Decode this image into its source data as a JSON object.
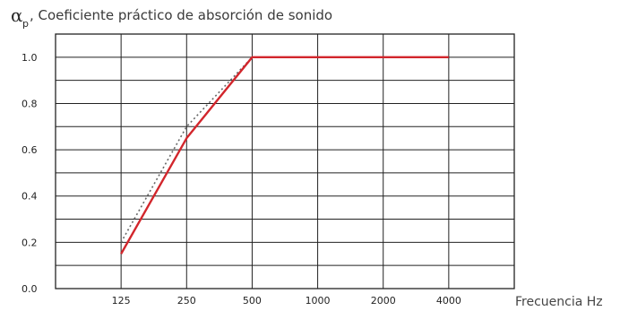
{
  "chart_data": {
    "type": "line",
    "title_symbol": "α",
    "title_subscript": "p",
    "title": ", Coeficiente práctico de absorción de sonido",
    "xlabel": "Frecuencia Hz",
    "categories": [
      "125",
      "250",
      "500",
      "1000",
      "2000",
      "4000"
    ],
    "ylim": [
      0,
      1.0
    ],
    "y_ticks": [
      "0.0",
      "0.2",
      "0.4",
      "0.6",
      "0.8",
      "1.0"
    ],
    "grid": true,
    "series": [
      {
        "style": "solid",
        "color": "#d2262c",
        "values": [
          0.15,
          0.65,
          1.0,
          1.0,
          1.0,
          1.0
        ]
      },
      {
        "style": "dotted",
        "color": "#666666",
        "values": [
          0.2,
          0.7,
          1.0,
          1.0,
          1.0,
          1.0
        ]
      }
    ]
  }
}
